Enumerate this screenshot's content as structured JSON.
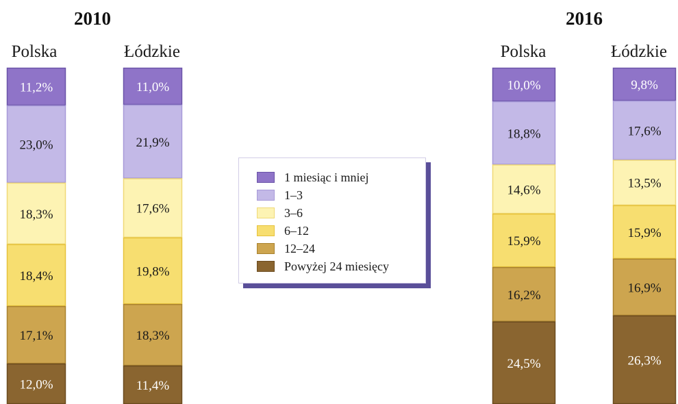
{
  "chart_data": {
    "type": "bar",
    "stacked": true,
    "groups": [
      {
        "year": "2010",
        "columns": [
          {
            "label": "Polska",
            "values": [
              "11,2%",
              "23,0%",
              "18,3%",
              "18,4%",
              "17,1%",
              "12,0%"
            ]
          },
          {
            "label": "Łódzkie",
            "values": [
              "11,0%",
              "21,9%",
              "17,6%",
              "19,8%",
              "18,3%",
              "11,4%"
            ]
          }
        ]
      },
      {
        "year": "2016",
        "columns": [
          {
            "label": "Polska",
            "values": [
              "10,0%",
              "18,8%",
              "14,6%",
              "15,9%",
              "16,2%",
              "24,5%"
            ]
          },
          {
            "label": "Łódzkie",
            "values": [
              "9,8%",
              "17,6%",
              "13,5%",
              "15,9%",
              "16,9%",
              "26,3%"
            ]
          }
        ]
      }
    ],
    "series": [
      {
        "name": "1 miesiąc i mniej",
        "color": "#8f74c8",
        "edge": "#6a53a8",
        "text": "#ffffff"
      },
      {
        "name": "1–3",
        "color": "#c3b9e7",
        "edge": "#a79ad8",
        "text": "#1a1a1a"
      },
      {
        "name": "3–6",
        "color": "#fdf3b3",
        "edge": "#efd977",
        "text": "#1a1a1a"
      },
      {
        "name": "6–12",
        "color": "#f7de70",
        "edge": "#e6c23c",
        "text": "#1a1a1a"
      },
      {
        "name": "12–24",
        "color": "#cda54f",
        "edge": "#a9822f",
        "text": "#1a1a1a"
      },
      {
        "name": "Powyżej 24 miesięcy",
        "color": "#8a6530",
        "edge": "#6b4b1f",
        "text": "#ffffff"
      }
    ],
    "legend_position": "center"
  }
}
